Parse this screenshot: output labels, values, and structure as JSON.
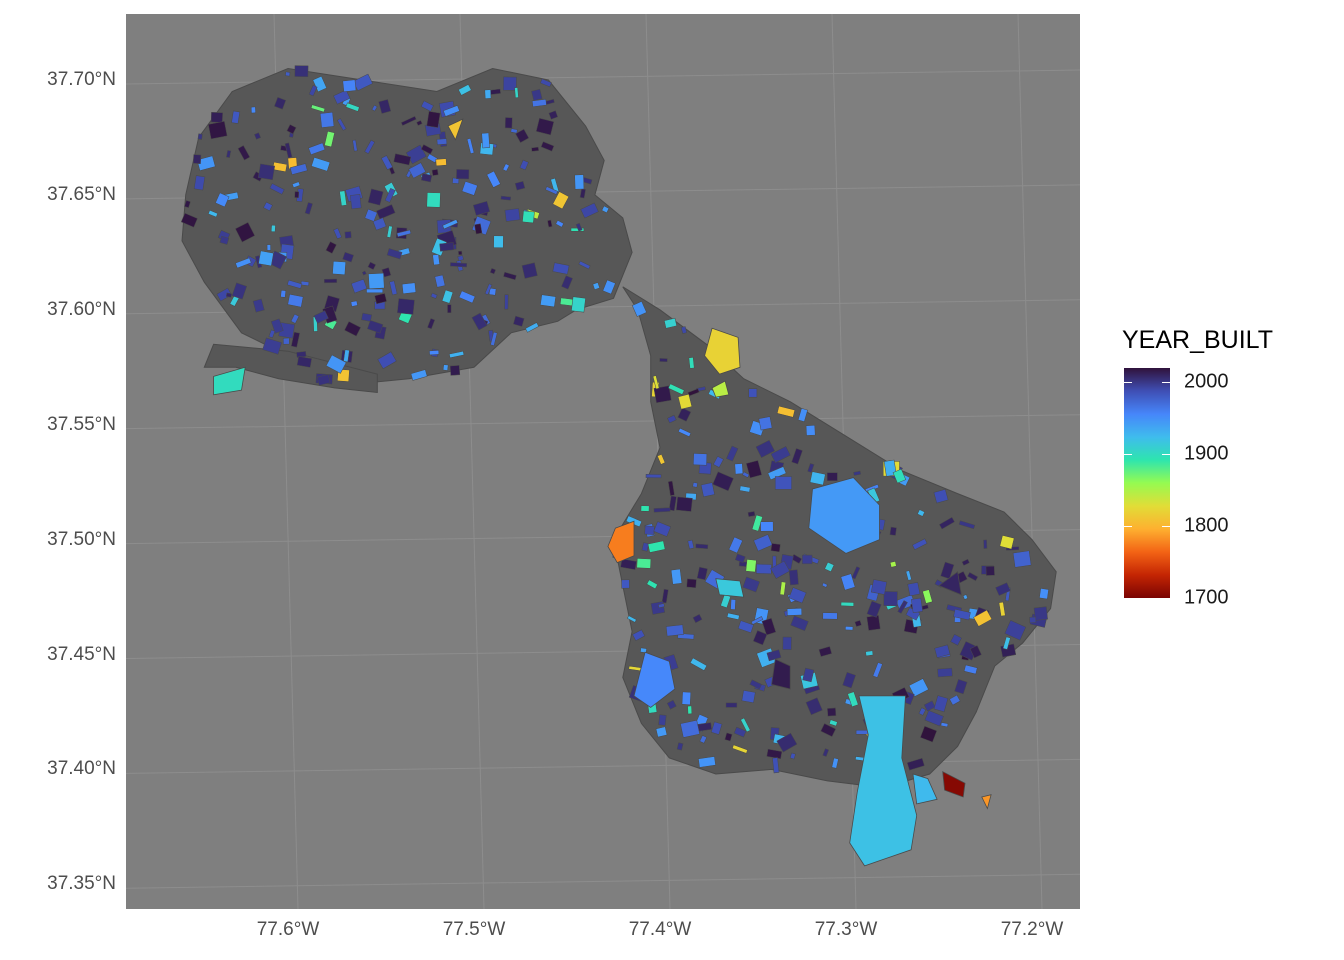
{
  "map": {
    "y_axis": {
      "ticks": [
        {
          "lat": 37.7,
          "label": "37.70°N"
        },
        {
          "lat": 37.65,
          "label": "37.65°N"
        },
        {
          "lat": 37.6,
          "label": "37.60°N"
        },
        {
          "lat": 37.55,
          "label": "37.55°N"
        },
        {
          "lat": 37.5,
          "label": "37.50°N"
        },
        {
          "lat": 37.45,
          "label": "37.45°N"
        },
        {
          "lat": 37.4,
          "label": "37.40°N"
        },
        {
          "lat": 37.35,
          "label": "37.35°N"
        }
      ]
    },
    "x_axis": {
      "ticks": [
        {
          "lon": -77.6,
          "label": "77.6°W"
        },
        {
          "lon": -77.5,
          "label": "77.5°W"
        },
        {
          "lon": -77.4,
          "label": "77.4°W"
        },
        {
          "lon": -77.3,
          "label": "77.3°W"
        },
        {
          "lon": -77.2,
          "label": "77.2°W"
        }
      ]
    },
    "extent": {
      "lon": [
        -77.68,
        -77.16
      ],
      "lat": [
        37.34,
        37.725
      ]
    },
    "fill_variable": "YEAR_BUILT",
    "colors": {
      "panel": "#7f7f7f",
      "gridline": "#8d8d8d",
      "parcel_base": "#575757",
      "parcel_stroke": "#4a4a4a"
    },
    "legend": {
      "title": "YEAR_BUILT",
      "range": [
        1700,
        2020
      ],
      "breaks": [
        {
          "value": 2000,
          "label": "2000"
        },
        {
          "value": 1900,
          "label": "1900"
        },
        {
          "value": 1800,
          "label": "1800"
        },
        {
          "value": 1700,
          "label": "1700"
        }
      ],
      "colormap": [
        "#7a0403",
        "#c42503",
        "#f36315",
        "#feb030",
        "#e1dd37",
        "#95fb51",
        "#2ee5ae",
        "#3fbced",
        "#4686fa",
        "#3f4fb5",
        "#30123b"
      ]
    }
  }
}
